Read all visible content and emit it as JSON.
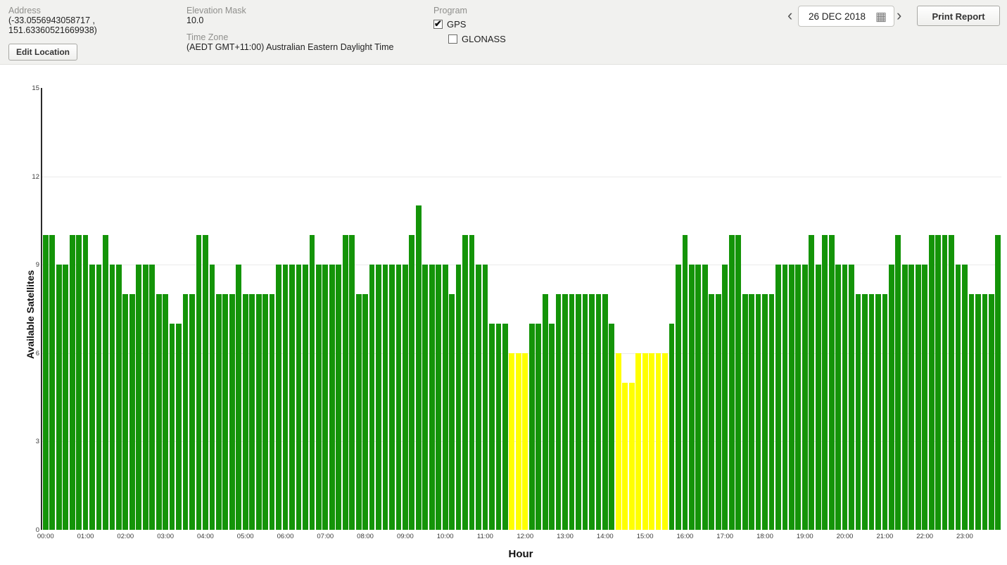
{
  "header": {
    "address_label": "Address",
    "address_line1": "(-33.0556943058717 ,",
    "address_line2": "151.63360521669938)",
    "edit_location_button": "Edit Location",
    "elevation_mask_label": "Elevation Mask",
    "elevation_mask_value": "10.0",
    "time_zone_label": "Time Zone",
    "time_zone_value": "(AEDT GMT+11:00) Australian Eastern Daylight Time",
    "program_label": "Program",
    "gps": {
      "label": "GPS",
      "checked": true
    },
    "glonass": {
      "label": "GLONASS",
      "checked": false
    },
    "date_value": "26 DEC 2018",
    "print_report_button": "Print Report"
  },
  "icons": {
    "prev": "‹",
    "next": "›",
    "calendar": "▦"
  },
  "chart_data": {
    "type": "bar",
    "title": "",
    "xlabel": "Hour",
    "ylabel": "Available Satellites",
    "ylim": [
      0,
      15
    ],
    "yticks": [
      0,
      3,
      6,
      9,
      12,
      15
    ],
    "gridlines": [
      3,
      6,
      9,
      12
    ],
    "grid": true,
    "legend": "none",
    "x_tick_labels": [
      "00:00",
      "01:00",
      "02:00",
      "03:00",
      "04:00",
      "05:00",
      "06:00",
      "07:00",
      "08:00",
      "09:00",
      "10:00",
      "11:00",
      "12:00",
      "13:00",
      "14:00",
      "15:00",
      "16:00",
      "17:00",
      "18:00",
      "19:00",
      "20:00",
      "21:00",
      "22:00",
      "23:00"
    ],
    "start_time": "00:00",
    "interval_minutes": 10,
    "values": [
      10,
      10,
      9,
      9,
      10,
      10,
      10,
      9,
      9,
      10,
      9,
      9,
      8,
      8,
      9,
      9,
      9,
      8,
      8,
      7,
      7,
      8,
      8,
      10,
      10,
      9,
      8,
      8,
      8,
      9,
      8,
      8,
      8,
      8,
      8,
      9,
      9,
      9,
      9,
      9,
      10,
      9,
      9,
      9,
      9,
      10,
      10,
      8,
      8,
      9,
      9,
      9,
      9,
      9,
      9,
      10,
      11,
      9,
      9,
      9,
      9,
      8,
      9,
      10,
      10,
      9,
      9,
      7,
      7,
      7,
      6,
      6,
      6,
      7,
      7,
      8,
      7,
      8,
      8,
      8,
      8,
      8,
      8,
      8,
      8,
      7,
      6,
      5,
      5,
      6,
      6,
      6,
      6,
      6,
      7,
      9,
      10,
      9,
      9,
      9,
      8,
      8,
      9,
      10,
      10,
      8,
      8,
      8,
      8,
      8,
      9,
      9,
      9,
      9,
      9,
      10,
      9,
      10,
      10,
      9,
      9,
      9,
      8,
      8,
      8,
      8,
      8,
      9,
      10,
      9,
      9,
      9,
      9,
      10,
      10,
      10,
      10,
      9,
      9,
      8,
      8,
      8,
      8,
      10
    ],
    "colors": {
      "ok": "#149408",
      "warn": "#ffff00"
    },
    "warn_below": 7
  }
}
